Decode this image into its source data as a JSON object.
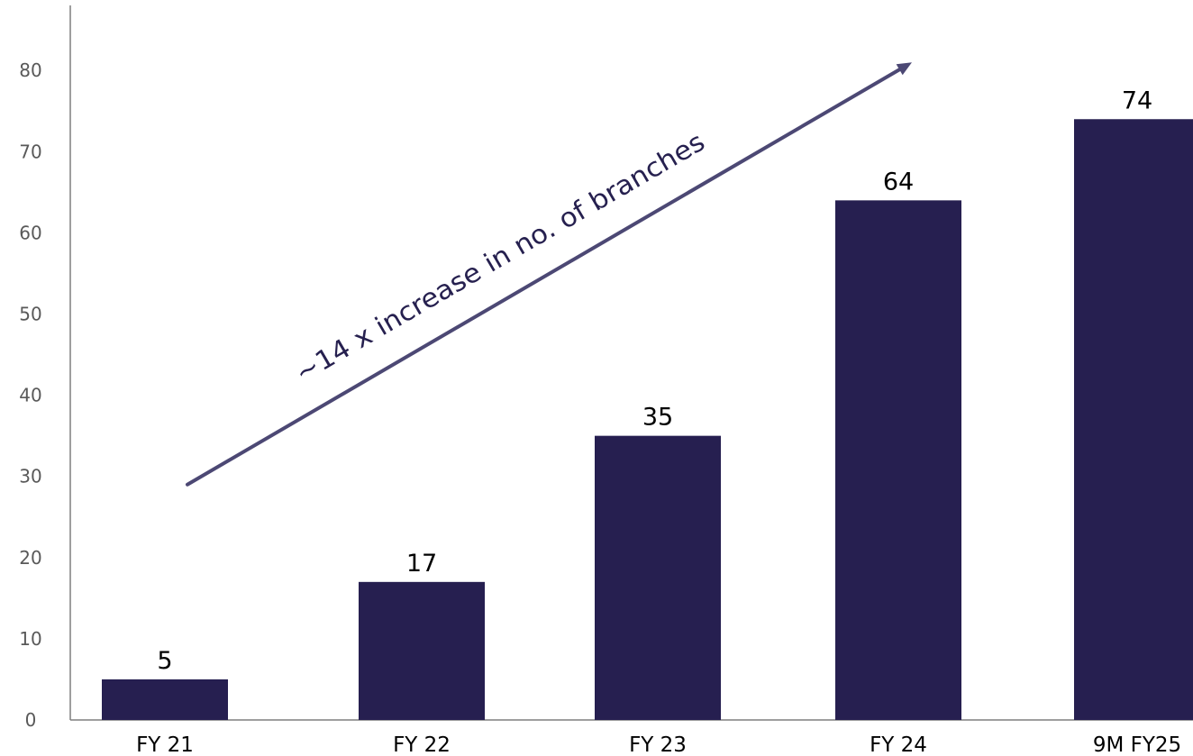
{
  "chart_data": {
    "type": "bar",
    "categories": [
      "FY 21",
      "FY 22",
      "FY 23",
      "FY 24",
      "9M FY25"
    ],
    "values": [
      5,
      17,
      35,
      64,
      74
    ],
    "data_labels": [
      "5",
      "17",
      "35",
      "64",
      "74"
    ],
    "y_ticks": [
      "0",
      "10",
      "20",
      "30",
      "40",
      "50",
      "60",
      "70",
      "80"
    ],
    "ylim": [
      0,
      88
    ],
    "grid": false,
    "annotation": {
      "text": "~14 x increase in no. of branches",
      "arrow_from": [
        "FY 21",
        29
      ],
      "arrow_to": [
        "FY 24",
        81
      ]
    }
  },
  "colors": {
    "bar": "#261f50",
    "arrow": "#4c4874",
    "axis": "#7f7f7f"
  }
}
